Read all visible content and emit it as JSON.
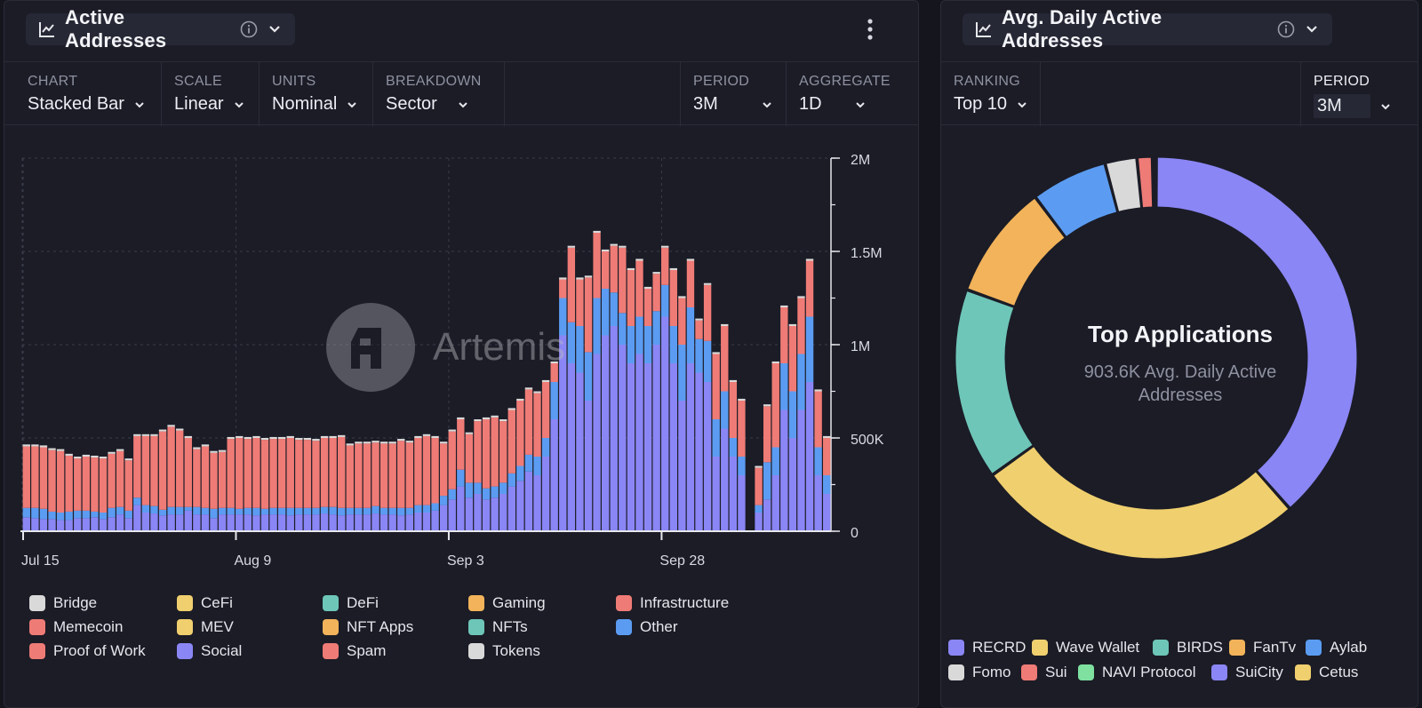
{
  "left": {
    "title": "Active Addresses",
    "controls": [
      {
        "label": "CHART",
        "value": "Stacked Bar"
      },
      {
        "label": "SCALE",
        "value": "Linear"
      },
      {
        "label": "UNITS",
        "value": "Nominal"
      },
      {
        "label": "BREAKDOWN",
        "value": "Sector"
      },
      {
        "label": "PERIOD",
        "value": "3M"
      },
      {
        "label": "AGGREGATE",
        "value": "1D"
      }
    ],
    "watermark": "Artemis",
    "legend": [
      {
        "name": "Bridge",
        "color": "#d9d9d9"
      },
      {
        "name": "CeFi",
        "color": "#f0cf6e"
      },
      {
        "name": "DeFi",
        "color": "#6ec6b8"
      },
      {
        "name": "Gaming",
        "color": "#f2b35a"
      },
      {
        "name": "Infrastructure",
        "color": "#ef7b76"
      },
      {
        "name": "Memecoin",
        "color": "#ef7b76"
      },
      {
        "name": "MEV",
        "color": "#f0cf6e"
      },
      {
        "name": "NFT Apps",
        "color": "#f2b35a"
      },
      {
        "name": "NFTs",
        "color": "#6ec6b8"
      },
      {
        "name": "Other",
        "color": "#5b9cf2"
      },
      {
        "name": "Proof of Work",
        "color": "#ef7b76"
      },
      {
        "name": "Social",
        "color": "#8b86f5"
      },
      {
        "name": "Spam",
        "color": "#ef7b76"
      },
      {
        "name": "Tokens",
        "color": "#d9d9d9"
      }
    ]
  },
  "right": {
    "title": "Avg. Daily Active Addresses",
    "controls": [
      {
        "label": "RANKING",
        "value": "Top 10"
      },
      {
        "label": "PERIOD",
        "value": "3M"
      }
    ],
    "center_title": "Top Applications",
    "center_sub": "903.6K Avg. Daily Active Addresses",
    "legend": [
      {
        "name": "RECRD",
        "color": "#8b86f5"
      },
      {
        "name": "Wave Wallet",
        "color": "#f0cf6e"
      },
      {
        "name": "BIRDS",
        "color": "#6ec6b8"
      },
      {
        "name": "FanTv",
        "color": "#f2b35a"
      },
      {
        "name": "Aylab",
        "color": "#5b9cf2"
      },
      {
        "name": "Fomo",
        "color": "#d9d9d9"
      },
      {
        "name": "Sui",
        "color": "#ef7b76"
      },
      {
        "name": "NAVI Protocol",
        "color": "#7fe0a0"
      },
      {
        "name": "SuiCity",
        "color": "#8b86f5"
      },
      {
        "name": "Cetus",
        "color": "#f0cf6e"
      }
    ]
  },
  "chart_data": [
    {
      "type": "bar",
      "stacked": true,
      "ylim": [
        0,
        2000000
      ],
      "yticks": [
        0,
        500000,
        1000000,
        1500000,
        2000000
      ],
      "ytick_labels": [
        "0",
        "500K",
        "1M",
        "1.5M",
        "2M"
      ],
      "xtick_labels": [
        {
          "label": "Jul 15",
          "index": 0
        },
        {
          "label": "Aug 9",
          "index": 25
        },
        {
          "label": "Sep 3",
          "index": 50
        },
        {
          "label": "Sep 28",
          "index": 75
        }
      ],
      "grid": true,
      "legend_position": "bottom",
      "series": [
        {
          "name": "Social",
          "color": "#8b86f5",
          "values": [
            75000,
            70000,
            65000,
            65000,
            60000,
            60000,
            70000,
            70000,
            75000,
            65000,
            75000,
            90000,
            70000,
            140000,
            100000,
            95000,
            85000,
            90000,
            90000,
            110000,
            90000,
            90000,
            70000,
            90000,
            90000,
            90000,
            90000,
            85000,
            90000,
            90000,
            90000,
            85000,
            90000,
            90000,
            90000,
            95000,
            90000,
            85000,
            90000,
            90000,
            90000,
            95000,
            90000,
            90000,
            85000,
            90000,
            100000,
            100000,
            110000,
            140000,
            170000,
            240000,
            180000,
            200000,
            170000,
            180000,
            200000,
            240000,
            270000,
            320000,
            300000,
            400000,
            600000,
            1050000,
            900000,
            850000,
            700000,
            950000,
            1050000,
            1100000,
            1000000,
            900000,
            950000,
            900000,
            1000000,
            1150000,
            900000,
            700000,
            900000,
            850000,
            800000,
            400000,
            550000,
            400000,
            300000,
            0,
            100000,
            170000,
            300000,
            650000,
            500000,
            650000,
            800000,
            300000,
            200000
          ]
        },
        {
          "name": "Other",
          "color": "#5b9cf2",
          "values": [
            50000,
            55000,
            55000,
            40000,
            40000,
            45000,
            40000,
            40000,
            30000,
            35000,
            50000,
            40000,
            40000,
            40000,
            40000,
            40000,
            30000,
            40000,
            40000,
            20000,
            40000,
            35000,
            50000,
            35000,
            35000,
            30000,
            35000,
            40000,
            30000,
            35000,
            35000,
            40000,
            35000,
            35000,
            35000,
            35000,
            40000,
            40000,
            35000,
            35000,
            35000,
            40000,
            35000,
            35000,
            40000,
            35000,
            40000,
            40000,
            40000,
            50000,
            55000,
            90000,
            80000,
            60000,
            60000,
            60000,
            60000,
            70000,
            80000,
            90000,
            100000,
            100000,
            200000,
            200000,
            220000,
            250000,
            260000,
            300000,
            250000,
            180000,
            170000,
            200000,
            200000,
            200000,
            180000,
            170000,
            200000,
            300000,
            300000,
            180000,
            220000,
            200000,
            200000,
            100000,
            100000,
            0,
            40000,
            200000,
            150000,
            250000,
            250000,
            300000,
            350000,
            150000,
            100000
          ]
        },
        {
          "name": "Infrastructure",
          "color": "#ef7b76",
          "values": [
            330000,
            330000,
            330000,
            330000,
            330000,
            300000,
            280000,
            290000,
            290000,
            290000,
            290000,
            300000,
            270000,
            330000,
            370000,
            375000,
            420000,
            430000,
            410000,
            370000,
            310000,
            330000,
            300000,
            300000,
            370000,
            380000,
            370000,
            375000,
            370000,
            370000,
            370000,
            375000,
            365000,
            365000,
            360000,
            370000,
            370000,
            380000,
            335000,
            345000,
            345000,
            340000,
            345000,
            345000,
            360000,
            350000,
            360000,
            370000,
            350000,
            280000,
            310000,
            270000,
            260000,
            330000,
            370000,
            370000,
            330000,
            340000,
            350000,
            350000,
            340000,
            300000,
            100000,
            100000,
            400000,
            250000,
            400000,
            350000,
            200000,
            250000,
            350000,
            300000,
            300000,
            200000,
            200000,
            200000,
            300000,
            250000,
            250000,
            100000,
            300000,
            350000,
            350000,
            300000,
            300000,
            0,
            200000,
            300000,
            450000,
            300000,
            350000,
            300000,
            300000,
            300000,
            200000
          ]
        },
        {
          "name": "Bridge",
          "color": "#d9d9d9",
          "values": [
            10000,
            10000,
            10000,
            10000,
            10000,
            10000,
            10000,
            10000,
            10000,
            10000,
            10000,
            10000,
            10000,
            10000,
            10000,
            10000,
            10000,
            10000,
            10000,
            10000,
            10000,
            10000,
            10000,
            10000,
            10000,
            10000,
            10000,
            10000,
            10000,
            10000,
            10000,
            10000,
            10000,
            10000,
            10000,
            10000,
            10000,
            10000,
            10000,
            10000,
            10000,
            10000,
            10000,
            10000,
            10000,
            10000,
            10000,
            10000,
            10000,
            10000,
            10000,
            10000,
            10000,
            10000,
            10000,
            10000,
            10000,
            10000,
            10000,
            10000,
            10000,
            10000,
            10000,
            10000,
            10000,
            10000,
            10000,
            10000,
            10000,
            10000,
            10000,
            10000,
            10000,
            10000,
            10000,
            10000,
            10000,
            10000,
            10000,
            10000,
            10000,
            10000,
            10000,
            10000,
            10000,
            0,
            10000,
            10000,
            10000,
            10000,
            10000,
            10000,
            10000,
            10000,
            10000
          ]
        }
      ]
    },
    {
      "type": "pie",
      "donut": true,
      "categories": [
        "RECRD",
        "Wave Wallet",
        "BIRDS",
        "FanTv",
        "Aylab",
        "Fomo",
        "Sui",
        "NAVI Protocol",
        "SuiCity",
        "Cetus"
      ],
      "values": [
        37.5,
        26.0,
        15.0,
        9.0,
        6.0,
        2.5,
        1.2,
        0.1,
        0.1,
        0.1
      ],
      "colors": [
        "#8b86f5",
        "#f0cf6e",
        "#6ec6b8",
        "#f2b35a",
        "#5b9cf2",
        "#d9d9d9",
        "#ef7b76",
        "#7fe0a0",
        "#8b86f5",
        "#f0cf6e"
      ],
      "legend_position": "bottom"
    }
  ]
}
